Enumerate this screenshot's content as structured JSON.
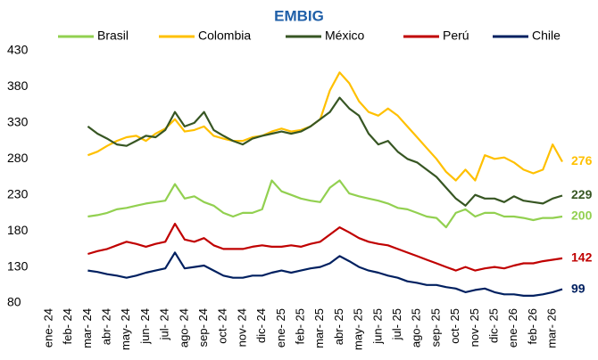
{
  "chart_data": {
    "type": "line",
    "title": "EMBIG",
    "legend": "top",
    "grid": false,
    "categories": [
      "ene- 24",
      null,
      "feb- 24",
      null,
      "mar- 24",
      null,
      "abr- 24",
      null,
      "may- 24",
      null,
      "jun- 24",
      null,
      "jul- 24",
      null,
      "ago- 24",
      null,
      "sep- 24",
      null,
      "oct- 24",
      null,
      "nov- 24",
      null,
      "dic- 24",
      null,
      "ene- 25",
      null,
      "feb- 25",
      null,
      "mar- 25",
      null,
      "abr- 25",
      null,
      "may- 25",
      null,
      "jun- 25",
      null,
      "jul- 25",
      null,
      "ago- 25",
      null,
      "sep- 25",
      null,
      "oct- 25",
      null,
      "nov- 25",
      null,
      "dic- 25",
      null,
      "ene- 26",
      null,
      "feb- 26",
      null,
      "mar- 26",
      null
    ],
    "ylim": [
      80,
      430
    ],
    "yticks": [
      80,
      130,
      180,
      230,
      280,
      330,
      380,
      430
    ],
    "series": [
      {
        "name": "Brasil",
        "color": "#92d050",
        "values": [
          null,
          null,
          null,
          null,
          200,
          202,
          205,
          210,
          212,
          215,
          218,
          220,
          222,
          245,
          225,
          228,
          220,
          215,
          205,
          200,
          205,
          205,
          210,
          250,
          235,
          230,
          225,
          222,
          220,
          240,
          250,
          232,
          228,
          225,
          222,
          218,
          212,
          210,
          205,
          200,
          198,
          185,
          205,
          210,
          200,
          205,
          205,
          200,
          200,
          198,
          195,
          198,
          198,
          200
        ]
      },
      {
        "name": "Colombia",
        "color": "#ffc000",
        "values": [
          null,
          null,
          null,
          null,
          285,
          290,
          298,
          305,
          310,
          312,
          305,
          315,
          322,
          335,
          318,
          320,
          325,
          312,
          308,
          305,
          305,
          310,
          312,
          318,
          322,
          318,
          320,
          325,
          335,
          375,
          400,
          385,
          360,
          345,
          340,
          350,
          340,
          325,
          310,
          295,
          280,
          262,
          250,
          265,
          250,
          285,
          280,
          282,
          275,
          265,
          260,
          265,
          300,
          276
        ]
      },
      {
        "name": "México",
        "color": "#375623",
        "values": [
          null,
          null,
          null,
          null,
          325,
          315,
          308,
          300,
          298,
          305,
          312,
          310,
          320,
          345,
          325,
          330,
          345,
          320,
          312,
          305,
          300,
          308,
          312,
          315,
          318,
          315,
          318,
          325,
          335,
          345,
          365,
          350,
          340,
          315,
          300,
          305,
          290,
          280,
          275,
          265,
          255,
          240,
          225,
          215,
          230,
          225,
          225,
          220,
          228,
          222,
          220,
          218,
          225,
          229
        ]
      },
      {
        "name": "Perú",
        "color": "#c00000",
        "values": [
          null,
          null,
          null,
          null,
          148,
          152,
          155,
          160,
          165,
          162,
          158,
          162,
          165,
          190,
          168,
          165,
          170,
          160,
          155,
          155,
          155,
          158,
          160,
          158,
          158,
          160,
          158,
          162,
          165,
          175,
          185,
          178,
          170,
          165,
          162,
          160,
          155,
          150,
          145,
          140,
          135,
          130,
          125,
          130,
          125,
          128,
          130,
          128,
          132,
          135,
          135,
          138,
          140,
          142
        ]
      },
      {
        "name": "Chile",
        "color": "#002060",
        "values": [
          null,
          null,
          null,
          null,
          125,
          123,
          120,
          118,
          115,
          118,
          122,
          125,
          128,
          150,
          128,
          130,
          132,
          125,
          118,
          115,
          115,
          118,
          118,
          122,
          125,
          122,
          125,
          128,
          130,
          135,
          145,
          138,
          130,
          125,
          122,
          118,
          115,
          110,
          108,
          105,
          105,
          102,
          100,
          95,
          98,
          100,
          95,
          92,
          92,
          90,
          90,
          92,
          95,
          99
        ]
      }
    ]
  }
}
